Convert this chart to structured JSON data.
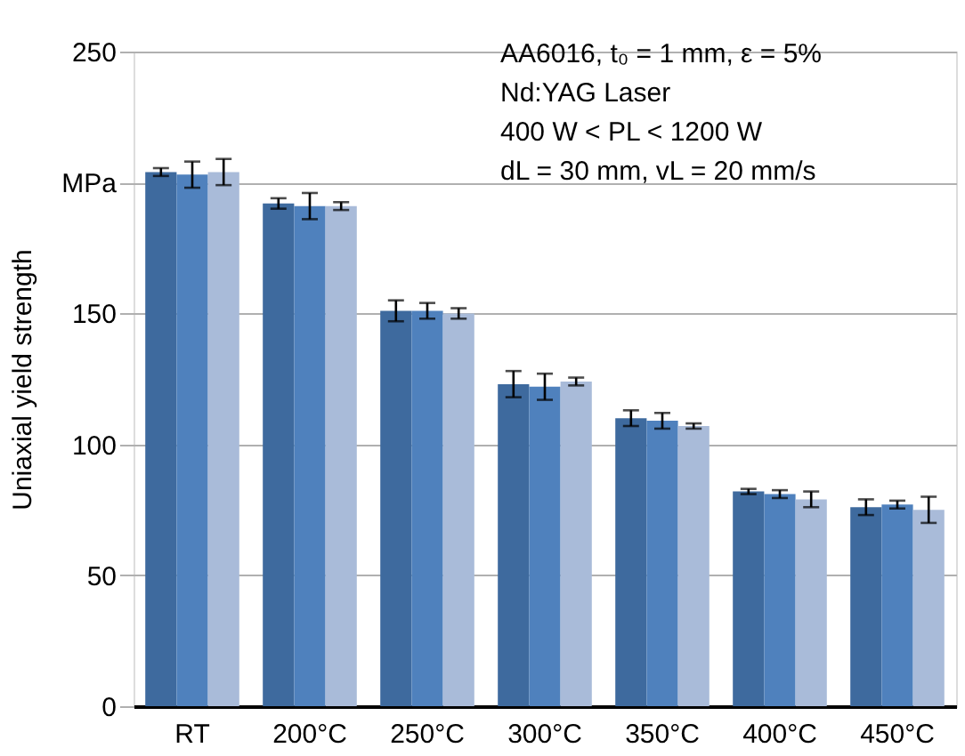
{
  "chart_data": {
    "type": "bar",
    "ylabel": "Uniaxial yield strength",
    "categories": [
      "RT",
      "200°C",
      "250°C",
      "300°C",
      "350°C",
      "400°C",
      "450°C"
    ],
    "series": [
      {
        "color": "#3e6a9e",
        "values": [
          204,
          192,
          151,
          123,
          110,
          82,
          76
        ],
        "errors": [
          1.5,
          2,
          4,
          5,
          3,
          1,
          3
        ]
      },
      {
        "color": "#4f81bd",
        "values": [
          203,
          191,
          151,
          122,
          109,
          81,
          77
        ],
        "errors": [
          5,
          5,
          3,
          5,
          3,
          1.5,
          1.5
        ]
      },
      {
        "color": "#a9bbd9",
        "values": [
          204,
          191,
          150,
          124,
          107,
          79,
          75
        ],
        "errors": [
          5,
          1.5,
          2,
          1.5,
          1,
          3,
          5
        ]
      }
    ],
    "ylim": [
      0,
      250
    ],
    "yticks": [
      0,
      50,
      100,
      150,
      {
        "value": 200,
        "label": "MPa"
      },
      250
    ],
    "grid": "y",
    "legend": false,
    "annotations": [
      "AA6016, t₀ = 1 mm,  ε = 5%",
      "Nd:YAG Laser",
      "400 W < PL < 1200 W",
      "dL = 30 mm,  vL = 20 mm/s"
    ]
  }
}
